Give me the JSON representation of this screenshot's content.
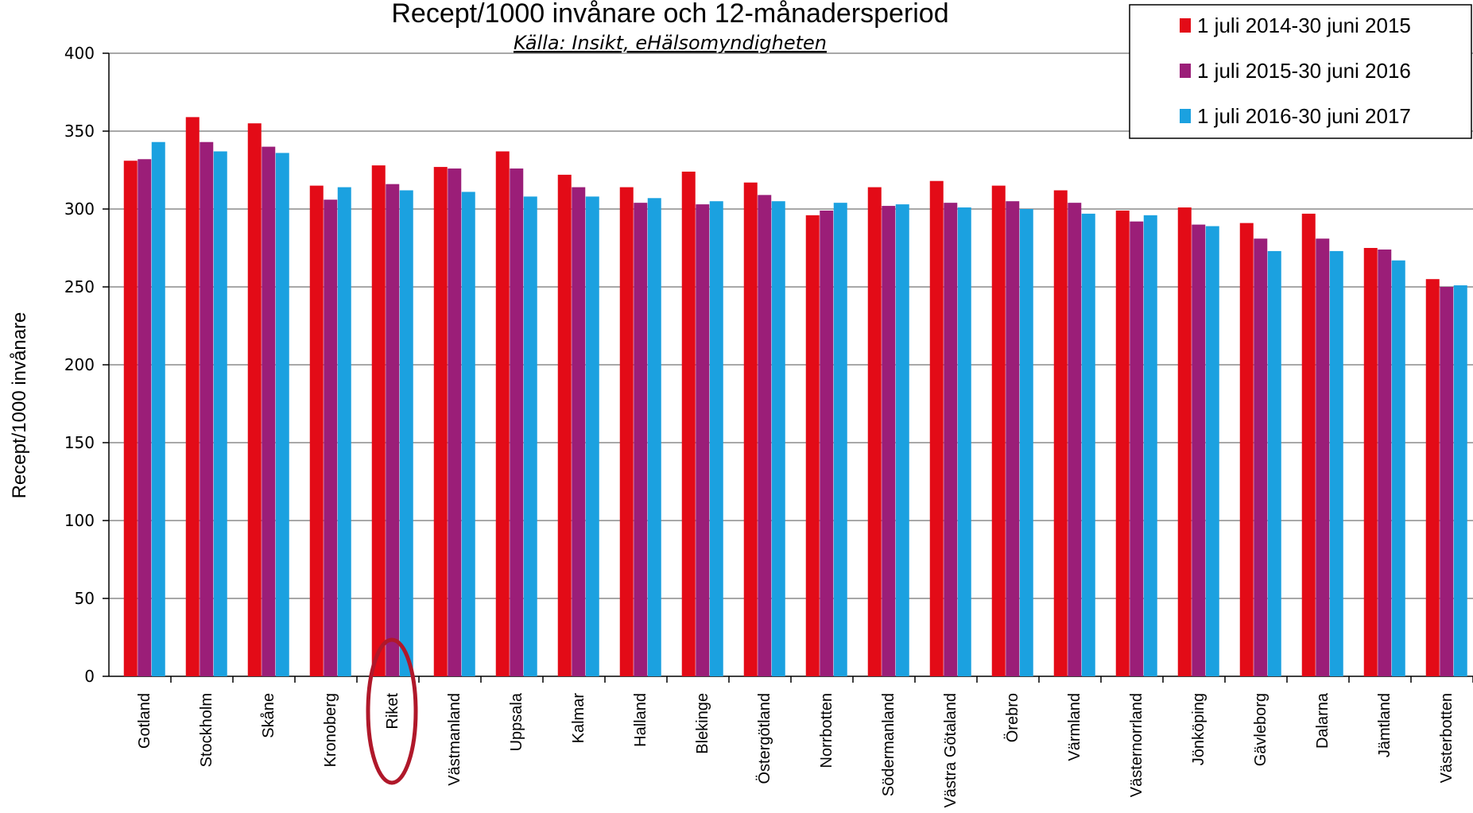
{
  "chart_data": {
    "type": "bar",
    "title": "Recept/1000 invånare och 12-månadersperiod",
    "subtitle": "Källa: Insikt, eHälsomyndigheten",
    "xlabel": "",
    "ylabel": "Recept/1000 invånare",
    "ylim": [
      0,
      400
    ],
    "yticks": [
      0,
      50,
      100,
      150,
      200,
      250,
      300,
      350,
      400
    ],
    "grid": true,
    "legend_position": "top-right",
    "highlighted_category": "Riket",
    "highlight_color": "#b0182a",
    "categories": [
      "Gotland",
      "Stockholm",
      "Skåne",
      "Kronoberg",
      "Riket",
      "Västmanland",
      "Uppsala",
      "Kalmar",
      "Halland",
      "Blekinge",
      "Östergötland",
      "Norrbotten",
      "Södermanland",
      "Västra Götaland",
      "Örebro",
      "Värmland",
      "Västernorrland",
      "Jönköping",
      "Gävleborg",
      "Dalarna",
      "Jämtland",
      "Västerbotten"
    ],
    "series": [
      {
        "name": "1 juli 2014-30 juni 2015",
        "color": "#e30b17",
        "values": [
          331,
          359,
          355,
          315,
          328,
          327,
          337,
          322,
          314,
          324,
          317,
          296,
          314,
          318,
          315,
          312,
          299,
          301,
          291,
          297,
          275,
          255
        ]
      },
      {
        "name": "1 juli 2015-30 juni 2016",
        "color": "#9b1e78",
        "values": [
          332,
          343,
          340,
          306,
          316,
          326,
          326,
          314,
          304,
          303,
          309,
          299,
          302,
          304,
          305,
          304,
          292,
          290,
          281,
          281,
          274,
          250
        ]
      },
      {
        "name": "1 juli 2016-30 juni 2017",
        "color": "#1ba1e0",
        "values": [
          343,
          337,
          336,
          314,
          312,
          311,
          308,
          308,
          307,
          305,
          305,
          304,
          303,
          301,
          300,
          297,
          296,
          289,
          273,
          273,
          267,
          251
        ]
      }
    ]
  }
}
